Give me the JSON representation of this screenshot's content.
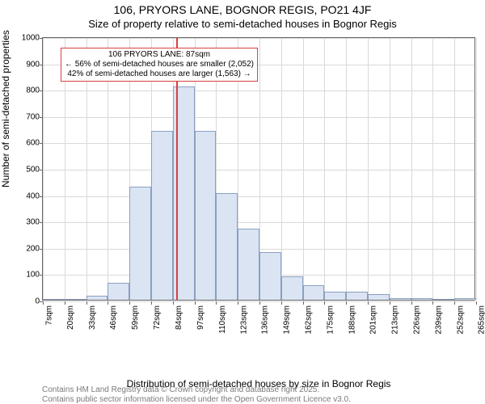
{
  "title": "106, PRYORS LANE, BOGNOR REGIS, PO21 4JF",
  "subtitle": "Size of property relative to semi-detached houses in Bognor Regis",
  "ylabel": "Number of semi-detached properties",
  "xlabel": "Distribution of semi-detached houses by size in Bognor Regis",
  "footer1": "Contains HM Land Registry data © Crown copyright and database right 2025.",
  "footer2": "Contains public sector information licensed under the Open Government Licence v3.0.",
  "chart": {
    "type": "histogram",
    "background_color": "#ffffff",
    "border_color": "#666666",
    "grid_color": "#d9d9d9",
    "bar_fill": "#dbe4f2",
    "bar_border": "#8aa0c2",
    "ref_color": "#d94040",
    "ylim": [
      0,
      1000
    ],
    "yticks": [
      0,
      100,
      200,
      300,
      400,
      500,
      600,
      700,
      800,
      900,
      1000
    ],
    "xticks": [
      "7sqm",
      "20sqm",
      "33sqm",
      "46sqm",
      "59sqm",
      "72sqm",
      "84sqm",
      "97sqm",
      "110sqm",
      "123sqm",
      "136sqm",
      "149sqm",
      "162sqm",
      "175sqm",
      "188sqm",
      "201sqm",
      "213sqm",
      "226sqm",
      "239sqm",
      "252sqm",
      "265sqm"
    ],
    "bars": [
      0,
      0,
      15,
      65,
      430,
      640,
      810,
      640,
      405,
      270,
      180,
      90,
      55,
      30,
      30,
      20,
      5,
      5,
      0,
      5
    ],
    "ref_index": 6.15,
    "annot": {
      "line1": "106 PRYORS LANE: 87sqm",
      "line2": "← 56% of semi-detached houses are smaller (2,052)",
      "line3": "42% of semi-detached houses are larger (1,563) →"
    },
    "annot_border": "#d94040",
    "title_fontsize": 14,
    "label_fontsize": 12,
    "tick_fontsize": 10
  }
}
